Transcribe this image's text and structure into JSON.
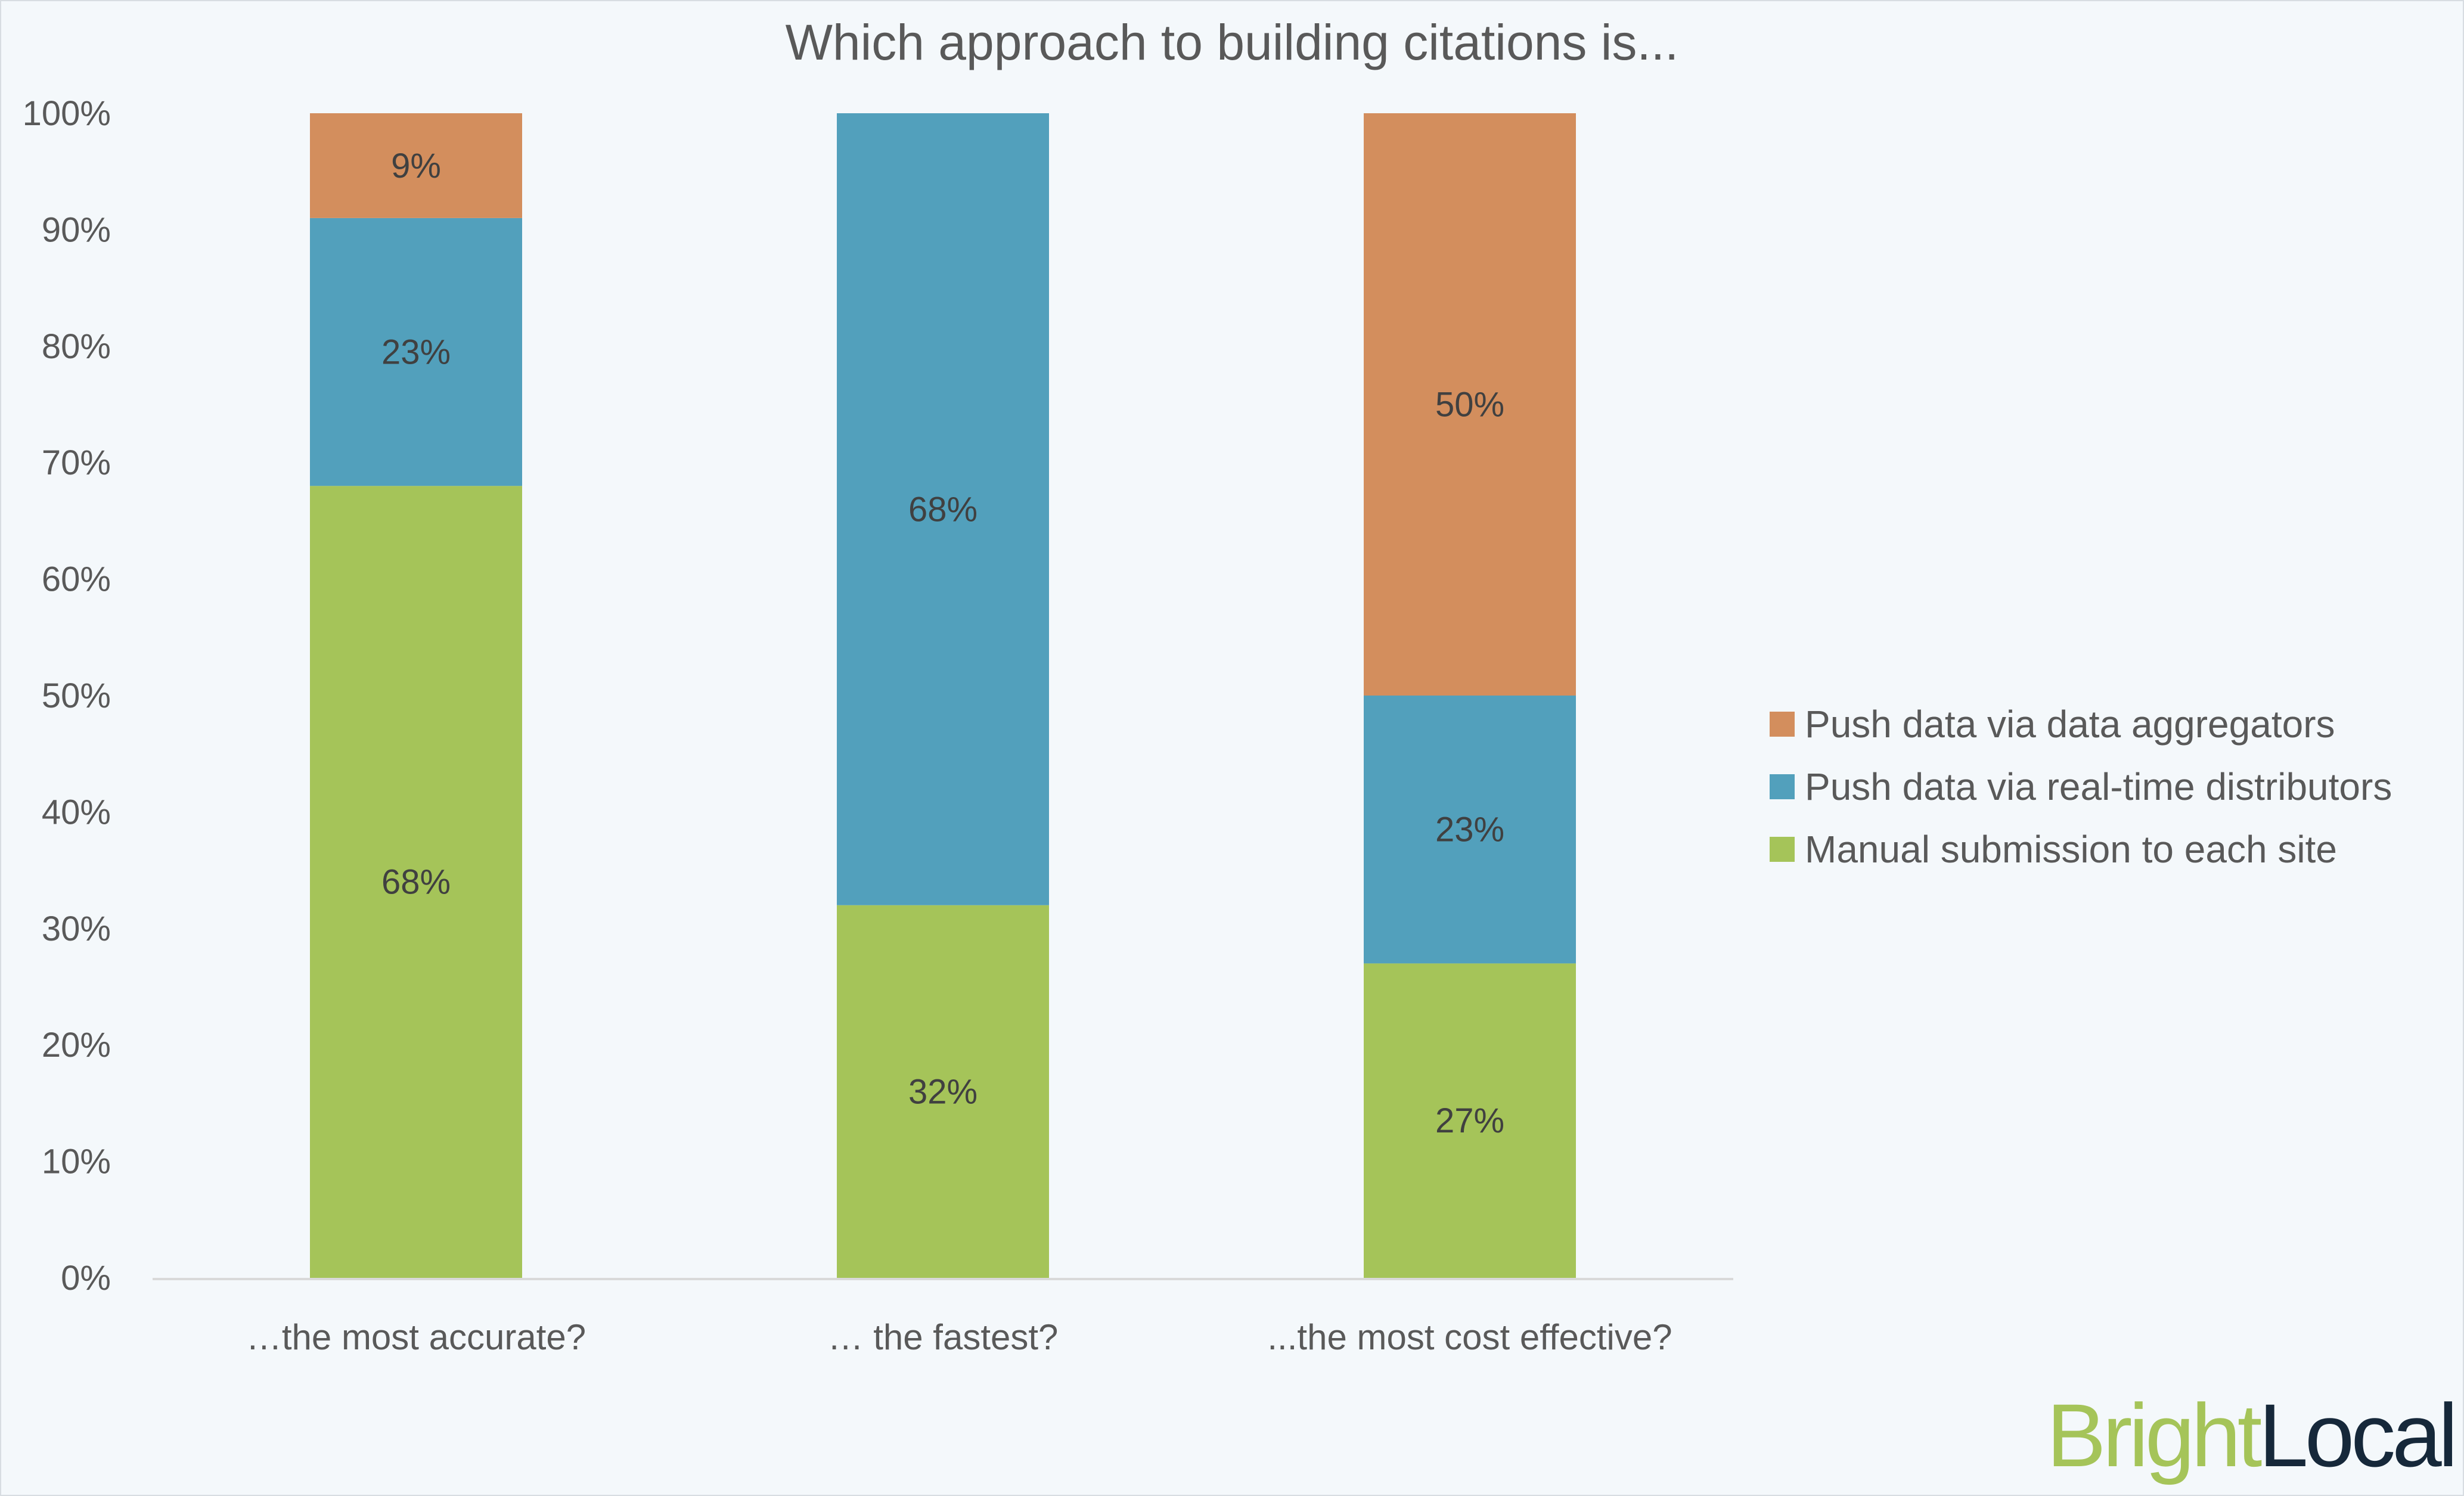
{
  "chart_data": {
    "type": "bar",
    "stacked": true,
    "title": "Which approach to building citations is...",
    "categories": [
      "…the most accurate?",
      "… the fastest?",
      "...the most cost effective?"
    ],
    "series": [
      {
        "name": "Manual submission to each site",
        "color": "#a5c459",
        "values": [
          68,
          32,
          27
        ]
      },
      {
        "name": "Push data via real-time distributors",
        "color": "#52a0bc",
        "values": [
          23,
          68,
          23
        ]
      },
      {
        "name": "Push data via data aggregators",
        "color": "#d38e5d",
        "values": [
          9,
          0,
          50
        ]
      }
    ],
    "value_suffix": "%",
    "ylim": [
      0,
      100
    ],
    "yticks": [
      "0%",
      "10%",
      "20%",
      "30%",
      "40%",
      "50%",
      "60%",
      "70%",
      "80%",
      "90%",
      "100%"
    ],
    "grid": false,
    "legend_position": "right"
  },
  "logo": {
    "part1": "Bright",
    "part2": "Local",
    "color1": "#a5c459",
    "color2": "#16283a"
  }
}
